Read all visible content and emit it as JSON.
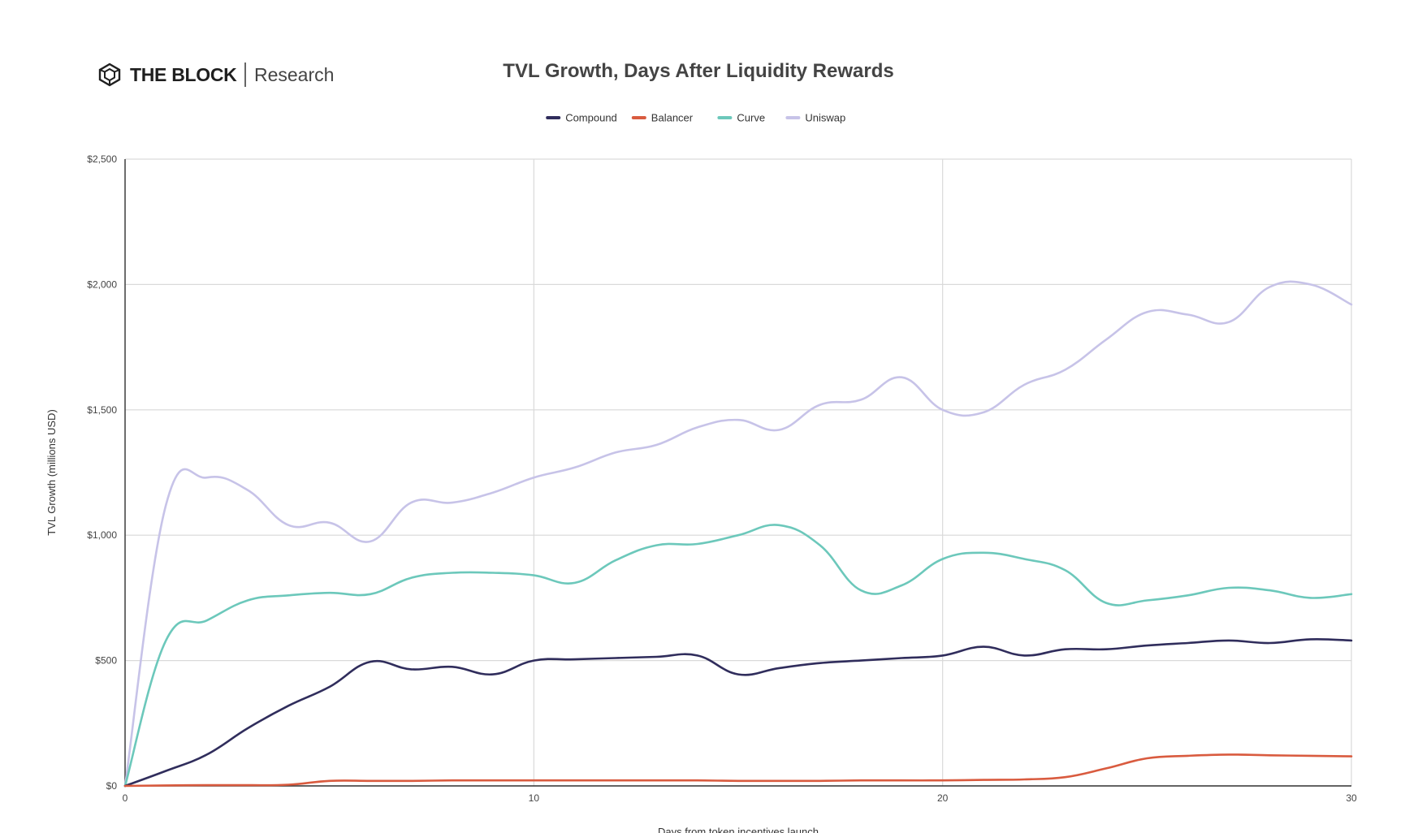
{
  "brand": {
    "name": "THE BLOCK",
    "sub": "Research"
  },
  "chart_data": {
    "type": "line",
    "title": "TVL Growth, Days After Liquidity Rewards",
    "xlabel": "Days from token incentives launch",
    "ylabel": "TVL Growth (millions USD)",
    "xlim": [
      0,
      30
    ],
    "ylim": [
      0,
      2500
    ],
    "x_ticks": [
      0,
      10,
      20,
      30
    ],
    "x_tick_labels": [
      "0",
      "10",
      "20",
      "30"
    ],
    "y_ticks": [
      0,
      500,
      1000,
      1500,
      2000,
      2500
    ],
    "y_tick_labels": [
      "$0",
      "$500",
      "$1,000",
      "$1,500",
      "$2,000",
      "$2,500"
    ],
    "grid": true,
    "legend_position": "top-center",
    "x": [
      0,
      1,
      2,
      3,
      4,
      5,
      6,
      7,
      8,
      9,
      10,
      11,
      12,
      13,
      14,
      15,
      16,
      17,
      18,
      19,
      20,
      21,
      22,
      23,
      24,
      25,
      26,
      27,
      28,
      29,
      30
    ],
    "series": [
      {
        "name": "Compound",
        "color": "#302d5c",
        "values": [
          0,
          60,
          125,
          230,
          320,
          395,
          495,
          465,
          475,
          445,
          500,
          505,
          510,
          515,
          520,
          445,
          470,
          490,
          500,
          510,
          520,
          555,
          520,
          545,
          545,
          560,
          570,
          580,
          570,
          585,
          580
        ]
      },
      {
        "name": "Balancer",
        "color": "#d95b3f",
        "values": [
          0,
          2,
          3,
          3,
          5,
          20,
          20,
          20,
          22,
          22,
          22,
          22,
          22,
          22,
          22,
          20,
          20,
          20,
          22,
          22,
          22,
          24,
          26,
          35,
          70,
          110,
          120,
          125,
          122,
          120,
          118
        ]
      },
      {
        "name": "Curve",
        "color": "#6cc8bb",
        "values": [
          0,
          580,
          660,
          740,
          760,
          770,
          765,
          830,
          850,
          850,
          840,
          810,
          900,
          960,
          965,
          1000,
          1040,
          960,
          780,
          800,
          905,
          930,
          905,
          860,
          730,
          740,
          760,
          790,
          780,
          750,
          765
        ]
      },
      {
        "name": "Uniswap",
        "color": "#c7c3e8",
        "values": [
          0,
          1120,
          1230,
          1180,
          1040,
          1050,
          975,
          1130,
          1130,
          1170,
          1230,
          1270,
          1330,
          1360,
          1430,
          1460,
          1420,
          1520,
          1540,
          1630,
          1500,
          1490,
          1600,
          1660,
          1780,
          1890,
          1880,
          1850,
          1990,
          2000,
          1920
        ]
      }
    ]
  }
}
